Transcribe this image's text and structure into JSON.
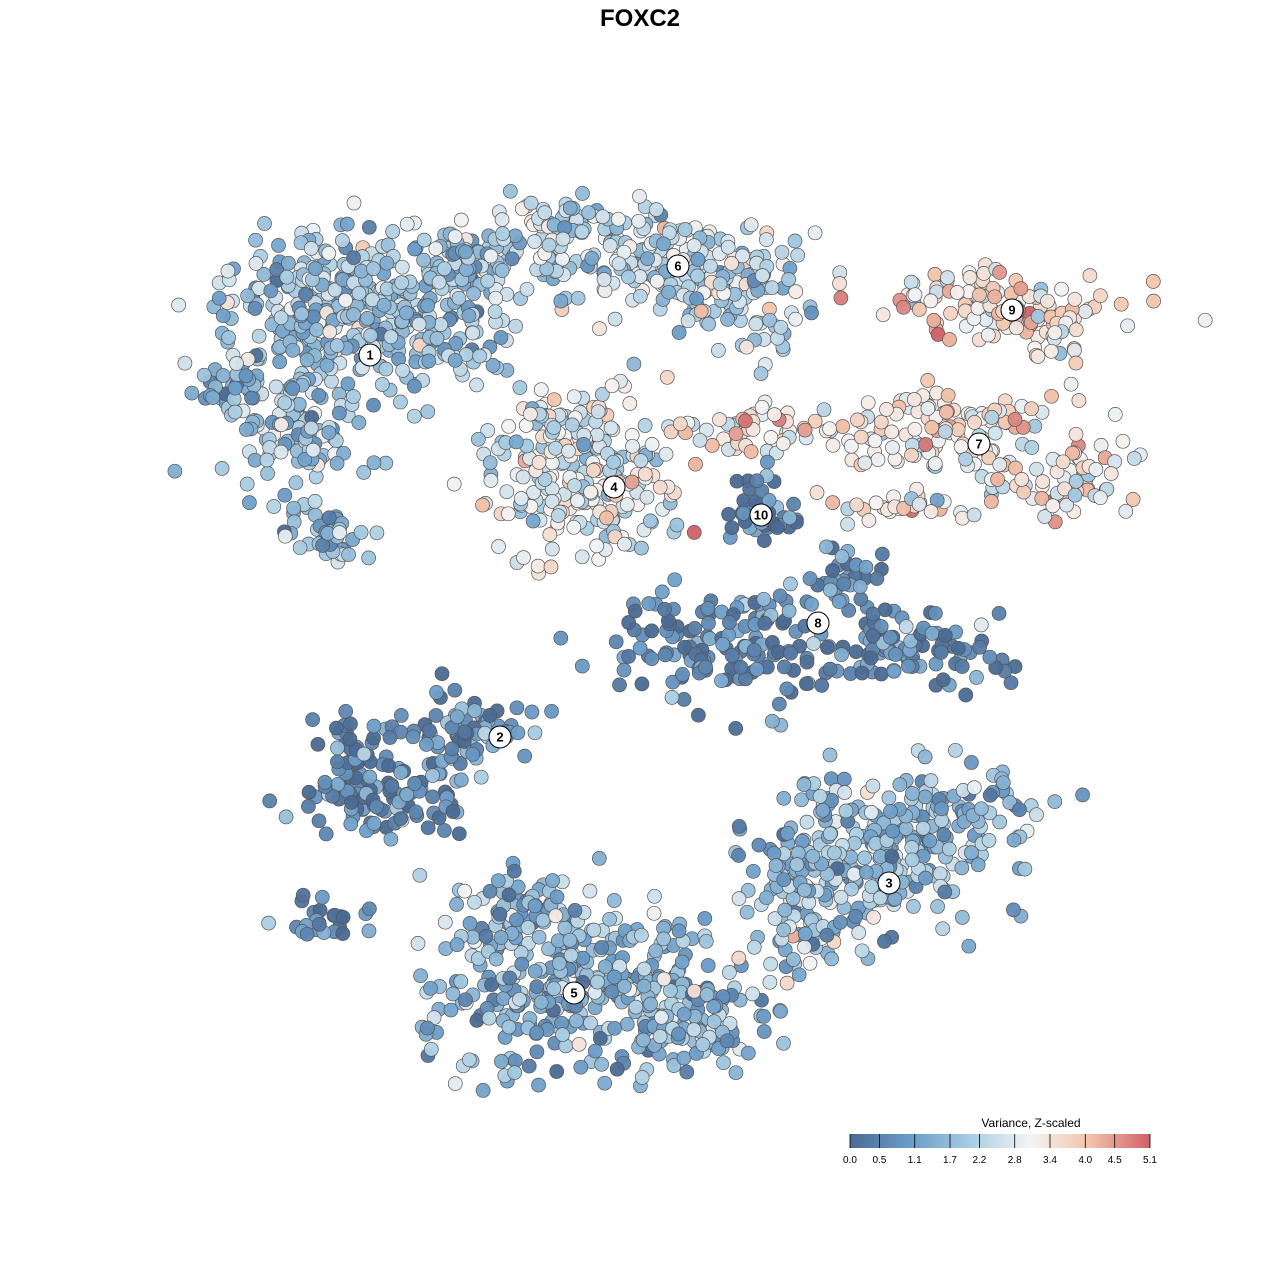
{
  "chart_data": {
    "type": "scatter",
    "title": "FOXC2",
    "xlabel": "",
    "ylabel": "",
    "grid": false,
    "color_scale": {
      "title": "Variance, Z-scaled",
      "min": 0.0,
      "max": 5.1,
      "ticks": [
        "0.0",
        "0.5",
        "1.1",
        "1.7",
        "2.2",
        "2.8",
        "3.4",
        "4.0",
        "4.5",
        "5.1"
      ],
      "colors": [
        "#4a6a94",
        "#6a9cc8",
        "#a8cce2",
        "#f4f4f4",
        "#f2c2a8",
        "#d06068"
      ],
      "placement": "bottom-right"
    },
    "clusters": [
      {
        "label": "1",
        "mean_value": 1.8
      },
      {
        "label": "2",
        "mean_value": 0.7
      },
      {
        "label": "3",
        "mean_value": 1.6
      },
      {
        "label": "4",
        "mean_value": 2.8
      },
      {
        "label": "5",
        "mean_value": 1.5
      },
      {
        "label": "6",
        "mean_value": 2.3
      },
      {
        "label": "7",
        "mean_value": 3.2
      },
      {
        "label": "8",
        "mean_value": 0.6
      },
      {
        "label": "9",
        "mean_value": 3.4
      },
      {
        "label": "10",
        "mean_value": 0.6
      }
    ]
  }
}
